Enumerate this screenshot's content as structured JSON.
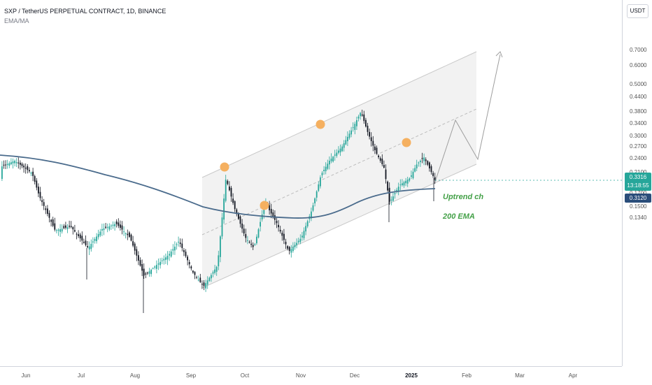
{
  "title": "SXP / TetherUS PERPETUAL CONTRACT, 1D, BINANCE",
  "indicator_label": "EMA/MA",
  "currency_button": "USDT",
  "price_ticks": [
    "0.7000",
    "0.6000",
    "0.5000",
    "0.4400",
    "0.3800",
    "0.3400",
    "0.3000",
    "0.2700",
    "0.2400",
    "0.2100",
    "0.1900",
    "0.1700",
    "0.1500",
    "0.1340"
  ],
  "time_ticks": [
    {
      "label": "Jun",
      "bold": false
    },
    {
      "label": "Jul",
      "bold": false
    },
    {
      "label": "Aug",
      "bold": false
    },
    {
      "label": "Sep",
      "bold": false
    },
    {
      "label": "Oct",
      "bold": false
    },
    {
      "label": "Nov",
      "bold": false
    },
    {
      "label": "Dec",
      "bold": false
    },
    {
      "label": "2025",
      "bold": true
    },
    {
      "label": "Feb",
      "bold": false
    },
    {
      "label": "Mar",
      "bold": false
    },
    {
      "label": "Apr",
      "bold": false
    }
  ],
  "last_price": {
    "value": "0.3316",
    "countdown": "13:18:55",
    "color": "#26a69a"
  },
  "ema_label": {
    "value": "0.3120",
    "color": "#2a4d7a"
  },
  "annotations": {
    "channel_label": "Uptrend ch",
    "ema_note": "200 EMA"
  },
  "colors": {
    "up": "#26a69a",
    "down": "#131722",
    "ema": "#4a6b8c",
    "marker": "#f5b060",
    "channel_fill": "#f0f0f0"
  },
  "chart_data": {
    "type": "candlestick",
    "symbol": "SXP/USDT",
    "timeframe": "1D",
    "scale": "log",
    "ylim": [
      0.13,
      0.78
    ],
    "x": [
      "2024-06",
      "2024-07",
      "2024-08",
      "2024-09",
      "2024-10",
      "2024-11",
      "2024-12",
      "2025-01",
      "2025-02",
      "2025-03",
      "2025-04"
    ],
    "series": [
      {
        "name": "EMA",
        "approx_values": [
          0.366,
          0.35,
          0.32,
          0.29,
          0.284,
          0.279,
          0.295,
          0.312
        ]
      }
    ],
    "price_path_close": [
      0.36,
      0.33,
      0.27,
      0.26,
      0.24,
      0.25,
      0.21,
      0.19,
      0.175,
      0.23,
      0.3,
      0.27,
      0.24,
      0.26,
      0.42,
      0.48,
      0.33,
      0.3,
      0.36,
      0.33,
      0.3316
    ],
    "pivot_markers": [
      0.345,
      0.29,
      0.455,
      0.39
    ],
    "projection": [
      0.3316,
      0.45,
      0.35,
      0.64
    ]
  }
}
